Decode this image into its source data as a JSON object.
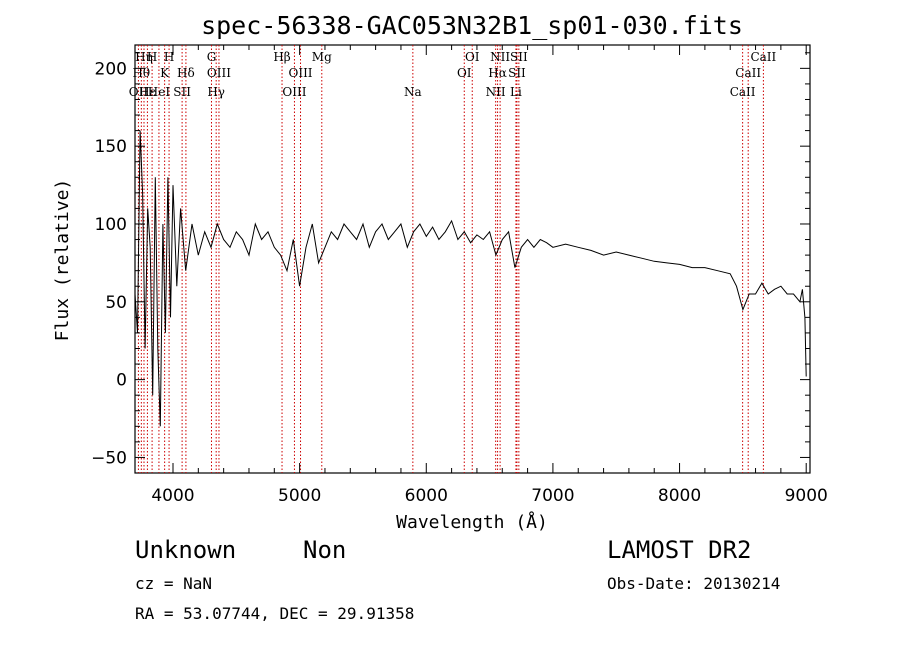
{
  "chart_data": {
    "type": "line",
    "title": "spec-56338-GAC053N32B1_sp01-030.fits",
    "xlabel": "Wavelength (Å)",
    "ylabel": "Flux (relative)",
    "xlim": [
      3700,
      9030
    ],
    "ylim": [
      -60,
      215
    ],
    "xticks": [
      4000,
      5000,
      6000,
      7000,
      8000,
      9000
    ],
    "yticks": [
      -50,
      0,
      50,
      100,
      150,
      200
    ],
    "xtick_labels": [
      "4000",
      "5000",
      "6000",
      "7000",
      "8000",
      "9000"
    ],
    "ytick_labels": [
      "−50",
      "0",
      "50",
      "100",
      "150",
      "200"
    ],
    "line_color": "#000000",
    "marker_color": "#cc0000",
    "series": [
      {
        "x": [
          3700,
          3720,
          3740,
          3760,
          3780,
          3800,
          3820,
          3840,
          3860,
          3880,
          3900,
          3920,
          3940,
          3960,
          3980,
          4000,
          4030,
          4060,
          4100,
          4150,
          4200,
          4250,
          4300,
          4350,
          4400,
          4450,
          4500,
          4550,
          4600,
          4650,
          4700,
          4750,
          4800,
          4850,
          4900,
          4950,
          5000,
          5050,
          5100,
          5150,
          5200,
          5250,
          5300,
          5350,
          5400,
          5450,
          5500,
          5550,
          5600,
          5650,
          5700,
          5750,
          5800,
          5850,
          5900,
          5950,
          6000,
          6050,
          6100,
          6150,
          6200,
          6250,
          6300,
          6350,
          6400,
          6450,
          6500,
          6550,
          6600,
          6650,
          6700,
          6750,
          6800,
          6850,
          6900,
          6950,
          7000,
          7100,
          7200,
          7300,
          7400,
          7500,
          7600,
          7700,
          7800,
          7900,
          8000,
          8100,
          8200,
          8300,
          8400,
          8450,
          8500,
          8550,
          8600,
          8650,
          8700,
          8750,
          8800,
          8850,
          8900,
          8950,
          8970,
          8990,
          9000
        ],
        "y": [
          55,
          30,
          160,
          120,
          20,
          110,
          85,
          -10,
          130,
          20,
          -30,
          100,
          30,
          130,
          40,
          125,
          60,
          110,
          70,
          100,
          80,
          95,
          85,
          100,
          90,
          85,
          95,
          90,
          80,
          100,
          90,
          95,
          85,
          80,
          70,
          90,
          60,
          85,
          100,
          75,
          85,
          95,
          90,
          100,
          95,
          90,
          100,
          85,
          95,
          100,
          90,
          95,
          100,
          85,
          95,
          100,
          92,
          98,
          90,
          95,
          102,
          90,
          95,
          88,
          93,
          90,
          95,
          80,
          90,
          95,
          72,
          85,
          90,
          85,
          90,
          88,
          85,
          87,
          85,
          83,
          80,
          82,
          80,
          78,
          76,
          75,
          74,
          72,
          72,
          70,
          68,
          60,
          45,
          55,
          55,
          62,
          55,
          58,
          60,
          55,
          55,
          50,
          58,
          40,
          2
        ]
      }
    ],
    "lines": [
      {
        "wl": 3727,
        "label": "OII",
        "row": 3
      },
      {
        "wl": 3750,
        "label": "Hθ",
        "row": 2
      },
      {
        "wl": 3771,
        "label": "Hη",
        "row": 1
      },
      {
        "wl": 3798,
        "label": "Hε",
        "row": 3
      },
      {
        "wl": 3835,
        "label": "H",
        "row": 1
      },
      {
        "wl": 3889,
        "label": "HeI",
        "row": 3
      },
      {
        "wl": 3934,
        "label": "K",
        "row": 2
      },
      {
        "wl": 3969,
        "label": "H",
        "row": 1
      },
      {
        "wl": 4072,
        "label": "SII",
        "row": 3
      },
      {
        "wl": 4102,
        "label": "Hδ",
        "row": 2
      },
      {
        "wl": 4304,
        "label": "G",
        "row": 1
      },
      {
        "wl": 4341,
        "label": "Hγ",
        "row": 3
      },
      {
        "wl": 4363,
        "label": "OIII",
        "row": 2
      },
      {
        "wl": 4861,
        "label": "Hβ",
        "row": 1
      },
      {
        "wl": 4959,
        "label": "OIII",
        "row": 3
      },
      {
        "wl": 5007,
        "label": "OIII",
        "row": 2
      },
      {
        "wl": 5175,
        "label": "Mg",
        "row": 1
      },
      {
        "wl": 5894,
        "label": "Na",
        "row": 3
      },
      {
        "wl": 6300,
        "label": "OI",
        "row": 2
      },
      {
        "wl": 6363,
        "label": "OI",
        "row": 1
      },
      {
        "wl": 6548,
        "label": "NII",
        "row": 3
      },
      {
        "wl": 6563,
        "label": "Hα",
        "row": 2
      },
      {
        "wl": 6583,
        "label": "NII",
        "row": 1
      },
      {
        "wl": 6708,
        "label": "Li",
        "row": 3
      },
      {
        "wl": 6716,
        "label": "SII",
        "row": 2
      },
      {
        "wl": 6731,
        "label": "SII",
        "row": 1
      },
      {
        "wl": 8498,
        "label": "CaII",
        "row": 3
      },
      {
        "wl": 8542,
        "label": "CaII",
        "row": 2
      },
      {
        "wl": 8662,
        "label": "CaII",
        "row": 1
      }
    ]
  },
  "footer": {
    "object_class": "Unknown",
    "object_subclass": "Non",
    "survey": "LAMOST DR2",
    "cz": "cz = NaN",
    "obs_date": "Obs-Date: 20130214",
    "radec": "RA =  53.07744, DEC =  29.91358"
  }
}
